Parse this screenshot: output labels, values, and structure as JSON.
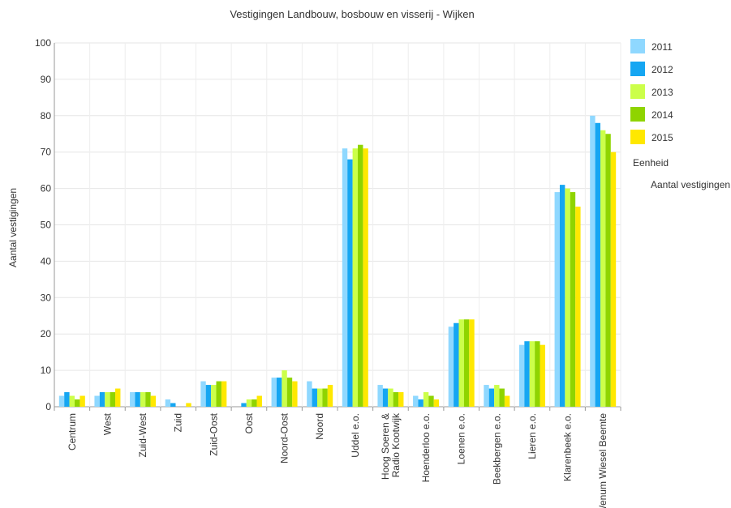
{
  "chart_data": {
    "type": "bar",
    "title": "Vestigingen Landbouw, bosbouw en visserij - Wijken",
    "xlabel": "",
    "ylabel": "Aantal vestigingen",
    "ylim": [
      0,
      100
    ],
    "yticks": [
      0,
      10,
      20,
      30,
      40,
      50,
      60,
      70,
      80,
      90,
      100
    ],
    "grid": true,
    "legend_position": "right",
    "categories": [
      "Centrum",
      "West",
      "Zuid-West",
      "Zuid",
      "Zuid-Oost",
      "Oost",
      "Noord-Oost",
      "Noord",
      "Uddel e.o.",
      "Hoog Soeren & Radio Kootwijk",
      "Hoenderloo e.o.",
      "Loenen e.o.",
      "Beekbergen e.o.",
      "Lieren e.o.",
      "Klarenbeek e.o.",
      "Wenum Wiesel Beemte"
    ],
    "category_lines": [
      [
        "Centrum"
      ],
      [
        "West"
      ],
      [
        "Zuid-West"
      ],
      [
        "Zuid"
      ],
      [
        "Zuid-Oost"
      ],
      [
        "Oost"
      ],
      [
        "Noord-Oost"
      ],
      [
        "Noord"
      ],
      [
        "Uddel e.o."
      ],
      [
        "Hoog Soeren &",
        "Radio Kootwijk"
      ],
      [
        "Hoenderloo e.o."
      ],
      [
        "Loenen e.o."
      ],
      [
        "Beekbergen e.o."
      ],
      [
        "Lieren e.o."
      ],
      [
        "Klarenbeek e.o."
      ],
      [
        "Wenum Wiesel Beemte"
      ]
    ],
    "series": [
      {
        "name": "2011",
        "color": "#8fd8ff",
        "values": [
          3,
          3,
          4,
          2,
          7,
          0,
          8,
          7,
          71,
          6,
          3,
          22,
          6,
          17,
          59,
          80
        ]
      },
      {
        "name": "2012",
        "color": "#15a6f2",
        "values": [
          4,
          4,
          4,
          1,
          6,
          1,
          8,
          5,
          68,
          5,
          2,
          23,
          5,
          18,
          61,
          78
        ]
      },
      {
        "name": "2013",
        "color": "#ccff4a",
        "values": [
          3,
          4,
          4,
          0,
          6,
          2,
          10,
          5,
          71,
          5,
          4,
          24,
          6,
          18,
          60,
          76
        ]
      },
      {
        "name": "2014",
        "color": "#8fd400",
        "values": [
          2,
          4,
          4,
          0,
          7,
          2,
          8,
          5,
          72,
          4,
          3,
          24,
          5,
          18,
          59,
          75
        ]
      },
      {
        "name": "2015",
        "color": "#ffe800",
        "values": [
          3,
          5,
          3,
          1,
          7,
          3,
          7,
          6,
          71,
          4,
          2,
          24,
          3,
          17,
          55,
          70
        ]
      }
    ]
  },
  "legend": {
    "unit_heading": "Eenheid",
    "unit_value": "Aantal vestigingen"
  }
}
